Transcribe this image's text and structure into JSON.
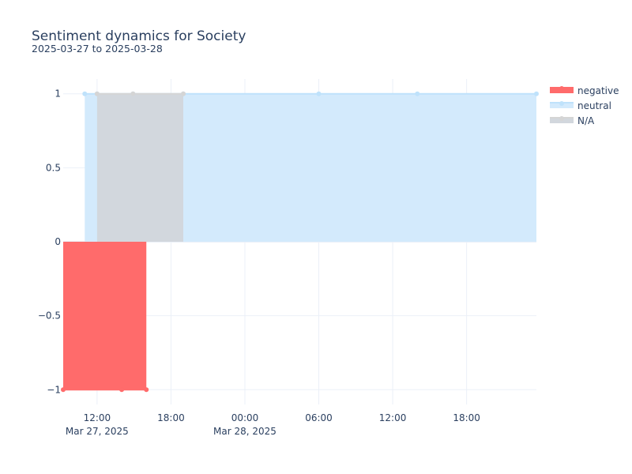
{
  "chart_data": {
    "type": "area",
    "title": "Sentiment dynamics for Society",
    "subtitle": "2025-03-27 to 2025-03-28",
    "xlabel": "",
    "ylabel": "",
    "x_range": [
      "2025-03-27 09:15",
      "2025-03-28 23:40"
    ],
    "ylim": [
      -1.1,
      1.1
    ],
    "x_ticks": [
      {
        "value": "2025-03-27 12:00",
        "label": "12:00",
        "sublabel": "Mar 27, 2025"
      },
      {
        "value": "2025-03-27 18:00",
        "label": "18:00",
        "sublabel": ""
      },
      {
        "value": "2025-03-28 00:00",
        "label": "00:00",
        "sublabel": "Mar 28, 2025"
      },
      {
        "value": "2025-03-28 06:00",
        "label": "06:00",
        "sublabel": ""
      },
      {
        "value": "2025-03-28 12:00",
        "label": "12:00",
        "sublabel": ""
      },
      {
        "value": "2025-03-28 18:00",
        "label": "18:00",
        "sublabel": ""
      }
    ],
    "y_ticks": [
      {
        "value": 1,
        "label": "1"
      },
      {
        "value": 0.5,
        "label": "0.5"
      },
      {
        "value": 0,
        "label": "0"
      },
      {
        "value": -0.5,
        "label": "−0.5"
      },
      {
        "value": -1,
        "label": "−1"
      }
    ],
    "grid": true,
    "legend_position": "top-right",
    "series": [
      {
        "name": "neutral",
        "color": "#bfe2fb",
        "fill": "#d3eafc",
        "points": [
          {
            "x": "2025-03-27 11:00",
            "y": 1
          },
          {
            "x": "2025-03-27 12:00",
            "y": 1
          },
          {
            "x": "2025-03-27 14:55",
            "y": 1
          },
          {
            "x": "2025-03-27 19:00",
            "y": 1
          },
          {
            "x": "2025-03-28 06:00",
            "y": 1
          },
          {
            "x": "2025-03-28 14:00",
            "y": 1
          },
          {
            "x": "2025-03-28 23:40",
            "y": 1
          }
        ]
      },
      {
        "name": "N/A",
        "color": "#d5d5d5",
        "fill": "#d2d7dd",
        "points": [
          {
            "x": "2025-03-27 12:00",
            "y": 1
          },
          {
            "x": "2025-03-27 14:55",
            "y": 1
          },
          {
            "x": "2025-03-27 19:00",
            "y": 1
          }
        ]
      },
      {
        "name": "negative",
        "color": "#ff6b6b",
        "fill": "#ff6b6b",
        "points": [
          {
            "x": "2025-03-27 09:15",
            "y": -1
          },
          {
            "x": "2025-03-27 14:00",
            "y": -1
          },
          {
            "x": "2025-03-27 16:00",
            "y": -1
          }
        ]
      }
    ],
    "legend_order": [
      "negative",
      "neutral",
      "N/A"
    ]
  }
}
